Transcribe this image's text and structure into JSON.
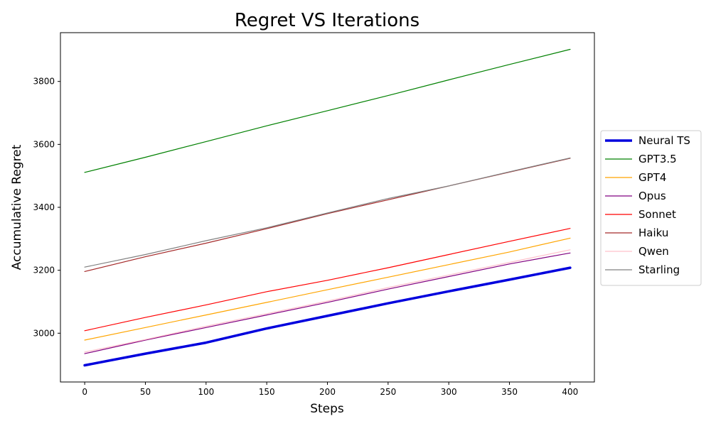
{
  "chart_data": {
    "type": "line",
    "title": "Regret VS Iterations",
    "xlabel": "Steps",
    "ylabel": "Accumulative Regret",
    "xlim": [
      -20,
      420
    ],
    "ylim": [
      2845,
      3955
    ],
    "x_ticks": [
      0,
      50,
      100,
      150,
      200,
      250,
      300,
      350,
      400
    ],
    "y_ticks": [
      3000,
      3200,
      3400,
      3600,
      3800
    ],
    "grid": false,
    "legend_position": "right-outside",
    "series": [
      {
        "name": "Neural TS",
        "color": "#0000dd",
        "width": "thick",
        "points": [
          [
            0,
            2898
          ],
          [
            50,
            2935
          ],
          [
            100,
            2970
          ],
          [
            150,
            3015
          ],
          [
            200,
            3055
          ],
          [
            250,
            3095
          ],
          [
            300,
            3133
          ],
          [
            350,
            3170
          ],
          [
            400,
            3208
          ]
        ]
      },
      {
        "name": "GPT3.5",
        "color": "#008000",
        "width": "thin",
        "points": [
          [
            0,
            3511
          ],
          [
            50,
            3559
          ],
          [
            100,
            3609
          ],
          [
            150,
            3659
          ],
          [
            200,
            3707
          ],
          [
            250,
            3755
          ],
          [
            300,
            3805
          ],
          [
            350,
            3854
          ],
          [
            400,
            3902
          ]
        ]
      },
      {
        "name": "GPT4",
        "color": "#ffa500",
        "width": "thin",
        "points": [
          [
            0,
            2978
          ],
          [
            50,
            3018
          ],
          [
            100,
            3058
          ],
          [
            150,
            3098
          ],
          [
            200,
            3138
          ],
          [
            250,
            3178
          ],
          [
            300,
            3218
          ],
          [
            350,
            3258
          ],
          [
            400,
            3302
          ]
        ]
      },
      {
        "name": "Opus",
        "color": "#800080",
        "width": "thin",
        "points": [
          [
            0,
            2935
          ],
          [
            50,
            2978
          ],
          [
            100,
            3018
          ],
          [
            150,
            3058
          ],
          [
            200,
            3098
          ],
          [
            250,
            3140
          ],
          [
            300,
            3180
          ],
          [
            350,
            3220
          ],
          [
            400,
            3255
          ]
        ]
      },
      {
        "name": "Sonnet",
        "color": "#ff0000",
        "width": "thin",
        "points": [
          [
            0,
            3008
          ],
          [
            50,
            3050
          ],
          [
            100,
            3090
          ],
          [
            150,
            3132
          ],
          [
            200,
            3168
          ],
          [
            250,
            3208
          ],
          [
            300,
            3250
          ],
          [
            350,
            3292
          ],
          [
            400,
            3333
          ]
        ]
      },
      {
        "name": "Haiku",
        "color": "#a52a2a",
        "width": "thin",
        "points": [
          [
            0,
            3196
          ],
          [
            50,
            3243
          ],
          [
            100,
            3286
          ],
          [
            150,
            3332
          ],
          [
            200,
            3380
          ],
          [
            250,
            3424
          ],
          [
            300,
            3468
          ],
          [
            350,
            3512
          ],
          [
            400,
            3556
          ]
        ]
      },
      {
        "name": "Qwen",
        "color": "#ffc0cb",
        "width": "thin",
        "points": [
          [
            0,
            2940
          ],
          [
            50,
            2980
          ],
          [
            100,
            3022
          ],
          [
            150,
            3062
          ],
          [
            200,
            3102
          ],
          [
            250,
            3145
          ],
          [
            300,
            3185
          ],
          [
            350,
            3225
          ],
          [
            400,
            3265
          ]
        ]
      },
      {
        "name": "Starling",
        "color": "#808080",
        "width": "thin",
        "points": [
          [
            0,
            3210
          ],
          [
            50,
            3250
          ],
          [
            100,
            3294
          ],
          [
            150,
            3335
          ],
          [
            200,
            3382
          ],
          [
            250,
            3428
          ],
          [
            300,
            3468
          ],
          [
            350,
            3513
          ],
          [
            400,
            3557
          ]
        ]
      }
    ]
  }
}
